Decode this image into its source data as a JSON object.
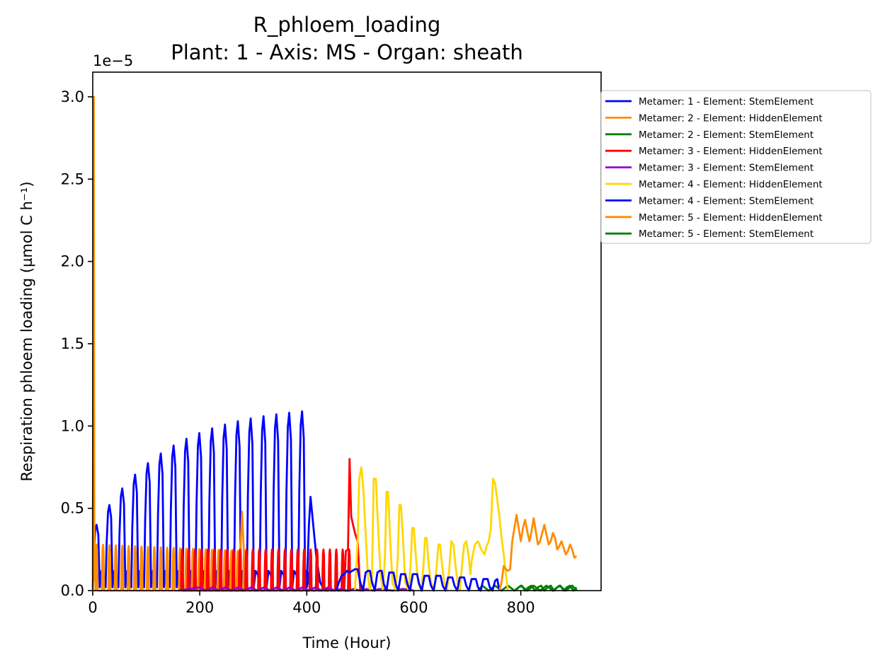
{
  "chart_data": {
    "type": "line",
    "title": "R_phloem_loading",
    "subtitle": "Plant: 1 - Axis: MS - Organ: sheath",
    "xlabel": "Time (Hour)",
    "ylabel": "Respiration phloem loading (µmol C h⁻¹)",
    "y_offset_label": "1e−5",
    "xlim": [
      0,
      950
    ],
    "ylim": [
      0,
      3.15
    ],
    "xticks": [
      0,
      200,
      400,
      600,
      800
    ],
    "yticks": [
      0.0,
      0.5,
      1.0,
      1.5,
      2.0,
      2.5,
      3.0
    ],
    "xtick_labels": [
      "0",
      "200",
      "400",
      "600",
      "800"
    ],
    "ytick_labels": [
      "0.0",
      "0.5",
      "1.0",
      "1.5",
      "2.0",
      "2.5",
      "3.0"
    ],
    "grid": false,
    "legend_position": "outside-right",
    "series": [
      {
        "name": "Metamer: 1 - Element: StemElement",
        "color": "#0000ff",
        "periodic": {
          "start": 0,
          "end": 400,
          "period": 24,
          "peak_width": 13,
          "amplitude_start": 0.4,
          "amplitude_end": 1.13,
          "amplitude_growth": 0.18,
          "baseline": 0.02,
          "secondary": 0.12
        },
        "tail": [
          [
            400,
            0.02
          ],
          [
            404,
            0.4
          ],
          [
            407,
            0.57
          ],
          [
            412,
            0.4
          ],
          [
            418,
            0.2
          ],
          [
            425,
            0.05
          ],
          [
            430,
            0.02
          ],
          [
            440,
            0.0
          ]
        ]
      },
      {
        "name": "Metamer: 2 - Element: HiddenElement",
        "color": "#ff8c00",
        "spike": [
          [
            0,
            0.0
          ],
          [
            2,
            3.0
          ],
          [
            3,
            0.1
          ],
          [
            5,
            0.05
          ]
        ],
        "periodic": {
          "start": 5,
          "end": 290,
          "period": 12,
          "peak_width": 4,
          "amplitude_start": 0.28,
          "amplitude_end": 0.24,
          "amplitude_growth": 0,
          "baseline": 0.0,
          "secondary": 0.0
        },
        "tail": [
          [
            270,
            0.0
          ],
          [
            276,
            0.24
          ],
          [
            279,
            0.48
          ],
          [
            283,
            0.2
          ],
          [
            288,
            0.0
          ]
        ]
      },
      {
        "name": "Metamer: 2 - Element: StemElement",
        "color": "#008000",
        "tail": [
          [
            720,
            0.0
          ],
          [
            728,
            0.03
          ],
          [
            740,
            0.0
          ],
          [
            752,
            0.03
          ],
          [
            764,
            0.0
          ],
          [
            776,
            0.03
          ],
          [
            788,
            0.0
          ],
          [
            800,
            0.03
          ],
          [
            812,
            0.0
          ],
          [
            824,
            0.03
          ],
          [
            836,
            0.0
          ],
          [
            848,
            0.03
          ],
          [
            860,
            0.0
          ],
          [
            872,
            0.03
          ],
          [
            884,
            0.0
          ],
          [
            896,
            0.03
          ],
          [
            905,
            0.0
          ]
        ]
      },
      {
        "name": "Metamer: 3 - Element: HiddenElement",
        "color": "#ff0000",
        "periodic": {
          "start": 165,
          "end": 480,
          "period": 12,
          "peak_width": 4,
          "amplitude_start": 0.25,
          "amplitude_end": 0.25,
          "amplitude_growth": 0,
          "baseline": 0.0,
          "secondary": 0.0
        },
        "tail": [
          [
            470,
            0.0
          ],
          [
            473,
            0.24
          ],
          [
            477,
            0.25
          ],
          [
            480,
            0.8
          ],
          [
            483,
            0.45
          ],
          [
            490,
            0.35
          ],
          [
            495,
            0.3
          ],
          [
            500,
            0.0
          ]
        ]
      },
      {
        "name": "Metamer: 3 - Element: StemElement",
        "color": "#9400d3",
        "tail": [
          [
            160,
            0.0
          ],
          [
            180,
            0.01
          ],
          [
            200,
            0.02
          ],
          [
            212,
            0.0
          ],
          [
            224,
            0.02
          ],
          [
            236,
            0.0
          ],
          [
            248,
            0.02
          ],
          [
            260,
            0.0
          ],
          [
            272,
            0.02
          ],
          [
            284,
            0.0
          ],
          [
            296,
            0.02
          ],
          [
            308,
            0.0
          ],
          [
            320,
            0.02
          ],
          [
            332,
            0.0
          ],
          [
            344,
            0.02
          ],
          [
            356,
            0.0
          ],
          [
            368,
            0.02
          ],
          [
            380,
            0.0
          ],
          [
            392,
            0.02
          ],
          [
            404,
            0.0
          ],
          [
            416,
            0.02
          ],
          [
            428,
            0.0
          ],
          [
            440,
            0.02
          ],
          [
            452,
            0.0
          ],
          [
            464,
            0.01
          ],
          [
            476,
            0.0
          ],
          [
            488,
            0.01
          ],
          [
            500,
            0.0
          ],
          [
            512,
            0.01
          ],
          [
            524,
            0.0
          ],
          [
            536,
            0.01
          ],
          [
            560,
            0.0
          ],
          [
            580,
            0.01
          ],
          [
            600,
            0.0
          ]
        ]
      },
      {
        "name": "Metamer: 4 - Element: HiddenElement",
        "color": "#ffd700",
        "points": [
          [
            490,
            0.0
          ],
          [
            495,
            0.3
          ],
          [
            498,
            0.68
          ],
          [
            502,
            0.75
          ],
          [
            506,
            0.6
          ],
          [
            510,
            0.35
          ],
          [
            514,
            0.1
          ],
          [
            518,
            0.0
          ],
          [
            522,
            0.1
          ],
          [
            525,
            0.68
          ],
          [
            529,
            0.68
          ],
          [
            533,
            0.4
          ],
          [
            538,
            0.1
          ],
          [
            542,
            0.0
          ],
          [
            546,
            0.2
          ],
          [
            549,
            0.6
          ],
          [
            552,
            0.6
          ],
          [
            556,
            0.3
          ],
          [
            560,
            0.05
          ],
          [
            566,
            0.0
          ],
          [
            570,
            0.2
          ],
          [
            573,
            0.52
          ],
          [
            576,
            0.52
          ],
          [
            580,
            0.3
          ],
          [
            584,
            0.05
          ],
          [
            590,
            0.0
          ],
          [
            594,
            0.15
          ],
          [
            597,
            0.38
          ],
          [
            600,
            0.38
          ],
          [
            604,
            0.2
          ],
          [
            608,
            0.05
          ],
          [
            614,
            0.0
          ],
          [
            618,
            0.15
          ],
          [
            621,
            0.32
          ],
          [
            624,
            0.32
          ],
          [
            628,
            0.15
          ],
          [
            632,
            0.05
          ],
          [
            638,
            0.0
          ],
          [
            642,
            0.12
          ],
          [
            646,
            0.28
          ],
          [
            649,
            0.28
          ],
          [
            653,
            0.15
          ],
          [
            657,
            0.05
          ],
          [
            662,
            0.0
          ],
          [
            666,
            0.12
          ],
          [
            670,
            0.3
          ],
          [
            674,
            0.28
          ],
          [
            678,
            0.15
          ],
          [
            682,
            0.05
          ],
          [
            686,
            0.0
          ],
          [
            690,
            0.15
          ],
          [
            694,
            0.28
          ],
          [
            698,
            0.3
          ],
          [
            702,
            0.22
          ],
          [
            706,
            0.1
          ],
          [
            708,
            0.18
          ],
          [
            714,
            0.28
          ],
          [
            720,
            0.3
          ],
          [
            726,
            0.25
          ],
          [
            732,
            0.22
          ],
          [
            736,
            0.27
          ],
          [
            740,
            0.3
          ],
          [
            744,
            0.38
          ],
          [
            748,
            0.68
          ],
          [
            752,
            0.65
          ],
          [
            756,
            0.55
          ],
          [
            760,
            0.45
          ],
          [
            764,
            0.32
          ],
          [
            768,
            0.22
          ],
          [
            772,
            0.1
          ],
          [
            776,
            0.0
          ]
        ]
      },
      {
        "name": "Metamer: 4 - Element: StemElement",
        "color": "#0000ff",
        "points": [
          [
            455,
            0.0
          ],
          [
            460,
            0.05
          ],
          [
            465,
            0.09
          ],
          [
            470,
            0.1
          ],
          [
            475,
            0.12
          ],
          [
            480,
            0.11
          ],
          [
            485,
            0.12
          ],
          [
            490,
            0.13
          ],
          [
            495,
            0.13
          ],
          [
            500,
            0.05
          ],
          [
            505,
            0.0
          ],
          [
            510,
            0.11
          ],
          [
            514,
            0.12
          ],
          [
            518,
            0.12
          ],
          [
            522,
            0.05
          ],
          [
            527,
            0.0
          ],
          [
            532,
            0.11
          ],
          [
            536,
            0.12
          ],
          [
            540,
            0.12
          ],
          [
            544,
            0.04
          ],
          [
            549,
            0.0
          ],
          [
            554,
            0.11
          ],
          [
            558,
            0.11
          ],
          [
            562,
            0.11
          ],
          [
            566,
            0.04
          ],
          [
            571,
            0.0
          ],
          [
            576,
            0.1
          ],
          [
            580,
            0.1
          ],
          [
            584,
            0.1
          ],
          [
            588,
            0.04
          ],
          [
            593,
            0.0
          ],
          [
            598,
            0.1
          ],
          [
            602,
            0.1
          ],
          [
            606,
            0.1
          ],
          [
            610,
            0.04
          ],
          [
            615,
            0.0
          ],
          [
            620,
            0.09
          ],
          [
            624,
            0.09
          ],
          [
            628,
            0.09
          ],
          [
            632,
            0.03
          ],
          [
            637,
            0.0
          ],
          [
            642,
            0.09
          ],
          [
            646,
            0.09
          ],
          [
            650,
            0.09
          ],
          [
            654,
            0.03
          ],
          [
            659,
            0.0
          ],
          [
            664,
            0.08
          ],
          [
            668,
            0.08
          ],
          [
            672,
            0.08
          ],
          [
            676,
            0.03
          ],
          [
            681,
            0.0
          ],
          [
            686,
            0.08
          ],
          [
            690,
            0.08
          ],
          [
            694,
            0.08
          ],
          [
            698,
            0.03
          ],
          [
            703,
            0.0
          ],
          [
            708,
            0.07
          ],
          [
            712,
            0.07
          ],
          [
            716,
            0.07
          ],
          [
            720,
            0.02
          ],
          [
            725,
            0.0
          ],
          [
            730,
            0.07
          ],
          [
            734,
            0.07
          ],
          [
            738,
            0.07
          ],
          [
            742,
            0.02
          ],
          [
            747,
            0.0
          ],
          [
            752,
            0.06
          ],
          [
            756,
            0.07
          ],
          [
            760,
            0.0
          ]
        ]
      },
      {
        "name": "Metamer: 5 - Element: HiddenElement",
        "color": "#ff8c00",
        "points": [
          [
            760,
            0.0
          ],
          [
            764,
            0.05
          ],
          [
            768,
            0.15
          ],
          [
            772,
            0.13
          ],
          [
            776,
            0.12
          ],
          [
            780,
            0.13
          ],
          [
            784,
            0.3
          ],
          [
            788,
            0.38
          ],
          [
            792,
            0.46
          ],
          [
            796,
            0.38
          ],
          [
            800,
            0.3
          ],
          [
            804,
            0.38
          ],
          [
            808,
            0.43
          ],
          [
            812,
            0.36
          ],
          [
            816,
            0.3
          ],
          [
            820,
            0.36
          ],
          [
            824,
            0.44
          ],
          [
            828,
            0.36
          ],
          [
            832,
            0.28
          ],
          [
            836,
            0.3
          ],
          [
            840,
            0.35
          ],
          [
            844,
            0.4
          ],
          [
            848,
            0.34
          ],
          [
            852,
            0.28
          ],
          [
            856,
            0.3
          ],
          [
            860,
            0.35
          ],
          [
            864,
            0.32
          ],
          [
            868,
            0.25
          ],
          [
            872,
            0.27
          ],
          [
            876,
            0.3
          ],
          [
            880,
            0.26
          ],
          [
            884,
            0.22
          ],
          [
            888,
            0.24
          ],
          [
            892,
            0.28
          ],
          [
            896,
            0.25
          ],
          [
            900,
            0.2
          ],
          [
            904,
            0.21
          ]
        ]
      },
      {
        "name": "Metamer: 5 - Element: StemElement",
        "color": "#008000",
        "points": [
          [
            790,
            0.0
          ],
          [
            796,
            0.02
          ],
          [
            802,
            0.03
          ],
          [
            808,
            0.0
          ],
          [
            814,
            0.02
          ],
          [
            820,
            0.03
          ],
          [
            826,
            0.0
          ],
          [
            832,
            0.02
          ],
          [
            838,
            0.03
          ],
          [
            844,
            0.0
          ],
          [
            850,
            0.02
          ],
          [
            856,
            0.03
          ],
          [
            862,
            0.0
          ],
          [
            868,
            0.02
          ],
          [
            874,
            0.03
          ],
          [
            880,
            0.0
          ],
          [
            886,
            0.02
          ],
          [
            892,
            0.03
          ],
          [
            898,
            0.0
          ],
          [
            904,
            0.02
          ]
        ]
      }
    ]
  }
}
